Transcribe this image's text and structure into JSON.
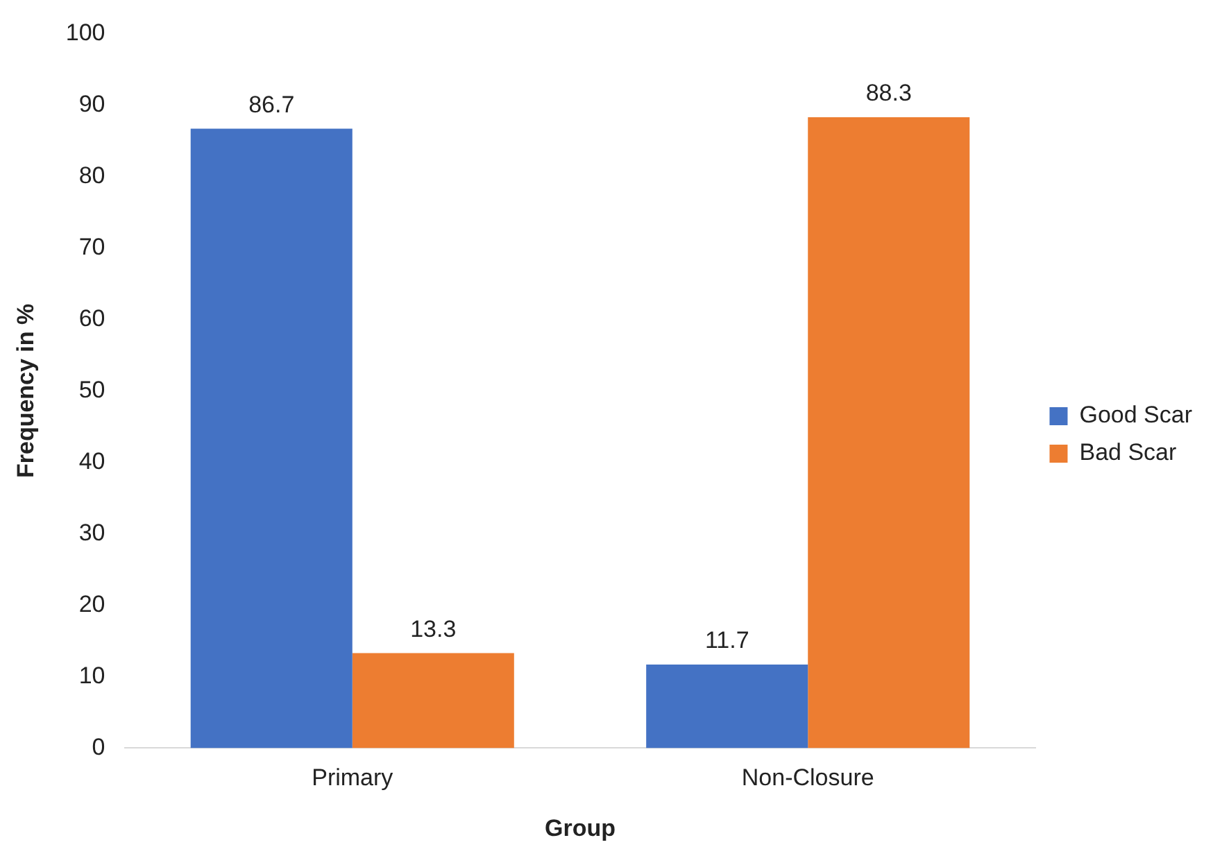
{
  "chart_data": {
    "type": "bar",
    "xlabel": "Group",
    "ylabel": "Frequency in %",
    "categories": [
      "Primary",
      "Non-Closure"
    ],
    "series": [
      {
        "name": "Good Scar",
        "color": "#4472c4",
        "values": [
          86.7,
          11.7
        ]
      },
      {
        "name": "Bad Scar",
        "color": "#ed7d31",
        "values": [
          13.3,
          88.3
        ]
      }
    ],
    "ylim": [
      0,
      100
    ],
    "yticks": [
      0,
      10,
      20,
      30,
      40,
      50,
      60,
      70,
      80,
      90,
      100
    ],
    "grid": false,
    "legend": "right",
    "data_labels": true
  }
}
